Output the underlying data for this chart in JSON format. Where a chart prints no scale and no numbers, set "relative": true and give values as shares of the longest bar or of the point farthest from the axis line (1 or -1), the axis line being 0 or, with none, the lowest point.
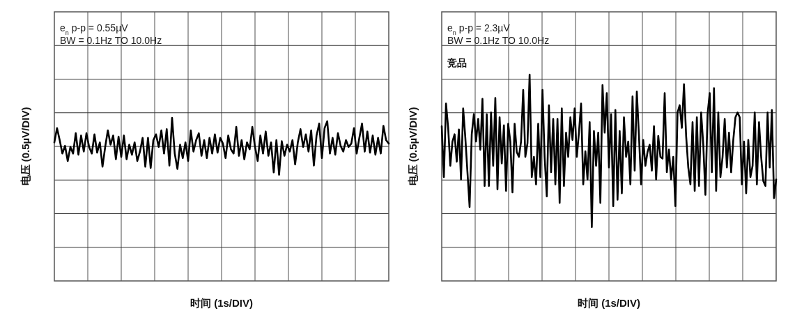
{
  "chart_data": [
    {
      "type": "line",
      "relative": true,
      "grid": true,
      "color": "#000000",
      "xlabel": "时间 (1s/DIV)",
      "ylabel": "电压 (0.5µV/DIV)",
      "annotations": [
        "e$_{n}$ p-p = 0.55µV",
        "BW = 0.1Hz TO 10.0Hz"
      ],
      "categories": [
        null,
        null,
        null,
        null,
        null,
        null,
        null,
        null,
        null,
        null,
        null,
        null,
        null,
        null,
        null,
        null,
        null,
        null,
        null,
        null,
        null,
        null,
        null,
        null,
        null,
        null,
        null,
        null,
        null,
        null,
        null,
        null,
        null,
        null,
        null,
        null,
        null,
        null,
        null,
        null,
        null,
        null,
        null,
        null,
        null,
        null,
        null,
        null,
        null,
        null,
        null,
        null,
        null,
        null,
        null,
        null,
        null,
        null,
        null,
        null,
        null,
        null,
        null,
        null,
        null,
        null,
        null,
        null,
        null,
        null,
        null,
        null,
        null,
        null,
        null,
        null,
        null,
        null,
        null,
        null,
        null,
        null,
        null,
        null,
        null,
        null,
        null,
        null,
        null,
        null,
        null,
        null,
        null,
        null,
        null,
        null,
        null,
        null,
        null,
        null,
        null,
        null,
        null,
        null,
        null,
        null,
        null,
        null,
        null,
        null,
        null,
        null,
        null,
        null,
        null,
        null,
        null,
        null,
        null,
        null,
        null,
        null,
        null,
        null,
        null,
        null
      ],
      "values": [
        0.14,
        0.64,
        0.22,
        -0.25,
        0.02,
        -0.51,
        -0.02,
        -0.25,
        0.46,
        -0.29,
        0.38,
        -0.18,
        0.46,
        -0.02,
        -0.25,
        0.42,
        -0.22,
        0.14,
        -0.71,
        -0.02,
        0.56,
        0.06,
        0.38,
        -0.45,
        0.34,
        -0.37,
        0.38,
        -0.45,
        0.06,
        -0.29,
        0.14,
        -0.51,
        -0.18,
        0.3,
        -0.71,
        0.3,
        -0.75,
        0.22,
        0.42,
        -0.02,
        0.56,
        -0.25,
        0.6,
        -0.67,
        1,
        -0.25,
        -0.79,
        0.06,
        -0.41,
        0.14,
        -0.51,
        0.56,
        -0.18,
        0.22,
        0.46,
        -0.33,
        0.22,
        -0.41,
        0.3,
        -0.25,
        0.42,
        -0.22,
        0.3,
        0.1,
        -0.41,
        0.38,
        -0.1,
        -0.25,
        0.68,
        -0.33,
        0.22,
        -0.45,
        0.14,
        -0.1,
        0.68,
        -0.02,
        -0.51,
        0.38,
        -0.25,
        0.52,
        -0.33,
        0.14,
        -0.91,
        0.22,
        -0.99,
        0.18,
        -0.33,
        0.06,
        -0.18,
        0.22,
        -0.63,
        0.14,
        0.6,
        -0.02,
        0.42,
        -0.18,
        0.56,
        -0.67,
        0.38,
        0.8,
        -0.41,
        0.64,
        0.88,
        -0.25,
        0.3,
        -0.29,
        0.46,
        0.02,
        -0.18,
        0.22,
        -0.02,
        0.1,
        0.64,
        -0.25,
        0.3,
        0.8,
        -0.18,
        0.52,
        -0.22,
        0.38,
        -0.29,
        0.3,
        -0.25,
        0.72,
        0.22,
        0.1
      ]
    },
    {
      "type": "line",
      "relative": true,
      "grid": true,
      "xlabel": "时间 (1s/DIV)",
      "ylabel": "电压 (0.5µV/DIV)",
      "annotations": [
        "e$_{n}$ p-p = 2.3µV",
        "BW = 0.1Hz TO 10.0Hz"
      ],
      "categories": [
        null,
        null,
        null,
        null,
        null,
        null,
        null,
        null,
        null,
        null,
        null,
        null,
        null,
        null,
        null,
        null,
        null,
        null,
        null,
        null,
        null,
        null,
        null,
        null,
        null,
        null,
        null,
        null,
        null,
        null,
        null,
        null,
        null,
        null,
        null,
        null,
        null,
        null,
        null,
        null,
        null,
        null,
        null,
        null,
        null,
        null,
        null,
        null,
        null,
        null,
        null,
        null,
        null,
        null,
        null,
        null,
        null,
        null,
        null,
        null,
        null,
        null,
        null,
        null,
        null,
        null,
        null,
        null,
        null,
        null,
        null,
        null,
        null,
        null,
        null,
        null,
        null,
        null,
        null,
        null,
        null,
        null,
        null,
        null,
        null,
        null,
        null,
        null,
        null,
        null,
        null,
        null,
        null,
        null,
        null,
        null,
        null,
        null,
        null,
        null,
        null,
        null,
        null,
        null,
        null,
        null,
        null,
        null,
        null,
        null,
        null,
        null,
        null,
        null,
        null,
        null,
        null,
        null,
        null,
        null,
        null,
        null,
        null,
        null,
        null,
        null,
        null,
        null,
        null,
        null,
        null,
        null,
        null,
        null,
        null,
        null,
        null,
        null,
        null,
        null,
        null,
        null,
        null,
        null,
        null,
        null,
        null,
        null,
        null,
        null,
        null,
        null,
        null,
        null,
        null,
        null,
        null
      ],
      "series": [
        {
          "name": "竞品",
          "color": "#000000",
          "values": [
            0.25,
            -0.38,
            0.53,
            0.23,
            -0.24,
            0.06,
            0.15,
            -0.19,
            0.21,
            -0.41,
            0.47,
            0.11,
            -0.32,
            -0.75,
            0.15,
            0.4,
            0.06,
            0.34,
            -0.04,
            0.59,
            -0.49,
            0.4,
            -0.49,
            0.42,
            -0.24,
            0.6,
            -0.53,
            0.36,
            -0.21,
            0.26,
            -0.55,
            0.28,
            0.06,
            -0.57,
            0.28,
            -0.07,
            -0.13,
            0.06,
            0.7,
            -0.13,
            0.04,
            0.89,
            -0.38,
            -0.13,
            -0.47,
            0.28,
            -0.38,
            0.7,
            -0.13,
            -0.62,
            0.51,
            -0.32,
            0.34,
            -0.47,
            0.34,
            -0.7,
            0.47,
            -0.49,
            0.17,
            -0.13,
            0.36,
            0.08,
            0.47,
            -0.13,
            0.17,
            0.53,
            -0.47,
            -0.06,
            -0.41,
            0.3,
            -1,
            0.19,
            -0.24,
            0.17,
            -0.7,
            0.76,
            0.17,
            0.66,
            -0.26,
            0.4,
            -0.74,
            0.45,
            -0.66,
            0.19,
            -0.58,
            0.36,
            -0.13,
            0.06,
            -0.47,
            0.62,
            -0.3,
            0.68,
            0.13,
            -0.47,
            0.08,
            -0.24,
            -0.07,
            0.02,
            -0.3,
            0.25,
            -0.41,
            0.13,
            -0.13,
            -0.15,
            0.66,
            -0.32,
            -0.04,
            -0.41,
            -0.13,
            -0.74,
            0.42,
            0.51,
            0.23,
            0.77,
            0.13,
            -0.26,
            -0.47,
            0.3,
            -0.55,
            0.36,
            -0.49,
            0.42,
            0.02,
            -0.6,
            0.4,
            0.66,
            -0.32,
            0.72,
            -0.55,
            0.42,
            -0.38,
            -0.13,
            0.34,
            -0.26,
            0.17,
            -0.32,
            0.08,
            0.36,
            0.42,
            0.36,
            -0.47,
            0.06,
            -0.58,
            0.08,
            -0.38,
            -0.24,
            0.42,
            -0.47,
            0.3,
            -0.13,
            -0.43,
            -0.49,
            0.42,
            -0.26,
            0.45,
            -0.64,
            -0.41
          ]
        }
      ]
    }
  ]
}
